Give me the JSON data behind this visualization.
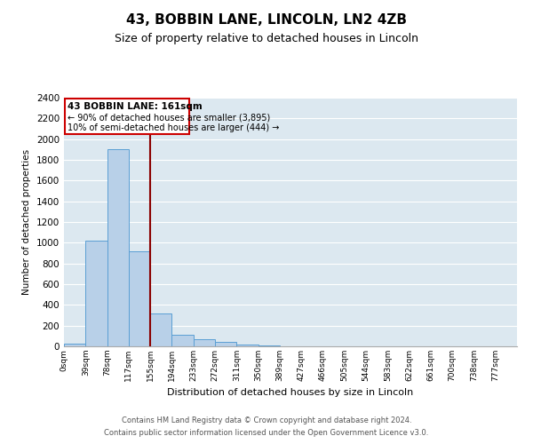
{
  "title": "43, BOBBIN LANE, LINCOLN, LN2 4ZB",
  "subtitle": "Size of property relative to detached houses in Lincoln",
  "xlabel": "Distribution of detached houses by size in Lincoln",
  "ylabel": "Number of detached properties",
  "bin_labels": [
    "0sqm",
    "39sqm",
    "78sqm",
    "117sqm",
    "155sqm",
    "194sqm",
    "233sqm",
    "272sqm",
    "311sqm",
    "350sqm",
    "389sqm",
    "427sqm",
    "466sqm",
    "505sqm",
    "544sqm",
    "583sqm",
    "622sqm",
    "661sqm",
    "700sqm",
    "738sqm",
    "777sqm"
  ],
  "bar_heights": [
    25,
    1020,
    1900,
    920,
    320,
    110,
    65,
    40,
    20,
    5,
    0,
    0,
    0,
    0,
    0,
    0,
    0,
    0,
    0,
    0,
    0
  ],
  "bar_color": "#b8d0e8",
  "bar_edge_color": "#5a9fd4",
  "background_color": "#dce8f0",
  "red_line_x": 4,
  "annotation_line1": "43 BOBBIN LANE: 161sqm",
  "annotation_line2": "← 90% of detached houses are smaller (3,895)",
  "annotation_line3": "10% of semi-detached houses are larger (444) →",
  "ylim": [
    0,
    2400
  ],
  "yticks": [
    0,
    200,
    400,
    600,
    800,
    1000,
    1200,
    1400,
    1600,
    1800,
    2000,
    2200,
    2400
  ],
  "footer1": "Contains HM Land Registry data © Crown copyright and database right 2024.",
  "footer2": "Contains public sector information licensed under the Open Government Licence v3.0.",
  "title_fontsize": 11,
  "subtitle_fontsize": 9
}
